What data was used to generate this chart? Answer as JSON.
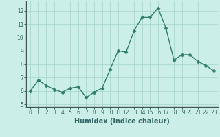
{
  "x": [
    0,
    1,
    2,
    3,
    4,
    5,
    6,
    7,
    8,
    9,
    10,
    11,
    12,
    13,
    14,
    15,
    16,
    17,
    18,
    19,
    20,
    21,
    22,
    23
  ],
  "y": [
    6.0,
    6.8,
    6.4,
    6.1,
    5.9,
    6.2,
    6.3,
    5.5,
    5.9,
    6.2,
    7.6,
    9.0,
    8.9,
    10.5,
    11.5,
    11.5,
    12.2,
    10.7,
    8.3,
    8.7,
    8.7,
    8.2,
    7.9,
    7.5
  ],
  "xlabel": "Humidex (Indice chaleur)",
  "ylim": [
    4.8,
    12.7
  ],
  "xlim": [
    -0.5,
    23.5
  ],
  "yticks": [
    5,
    6,
    7,
    8,
    9,
    10,
    11,
    12
  ],
  "xticks": [
    0,
    1,
    2,
    3,
    4,
    5,
    6,
    7,
    8,
    9,
    10,
    11,
    12,
    13,
    14,
    15,
    16,
    17,
    18,
    19,
    20,
    21,
    22,
    23
  ],
  "line_color": "#2e7d6e",
  "marker": "D",
  "marker_size": 2.5,
  "bg_color": "#cceee8",
  "grid_color": "#aad8d0",
  "bottom_bar_color": "#336666",
  "tick_label_color": "#336666"
}
